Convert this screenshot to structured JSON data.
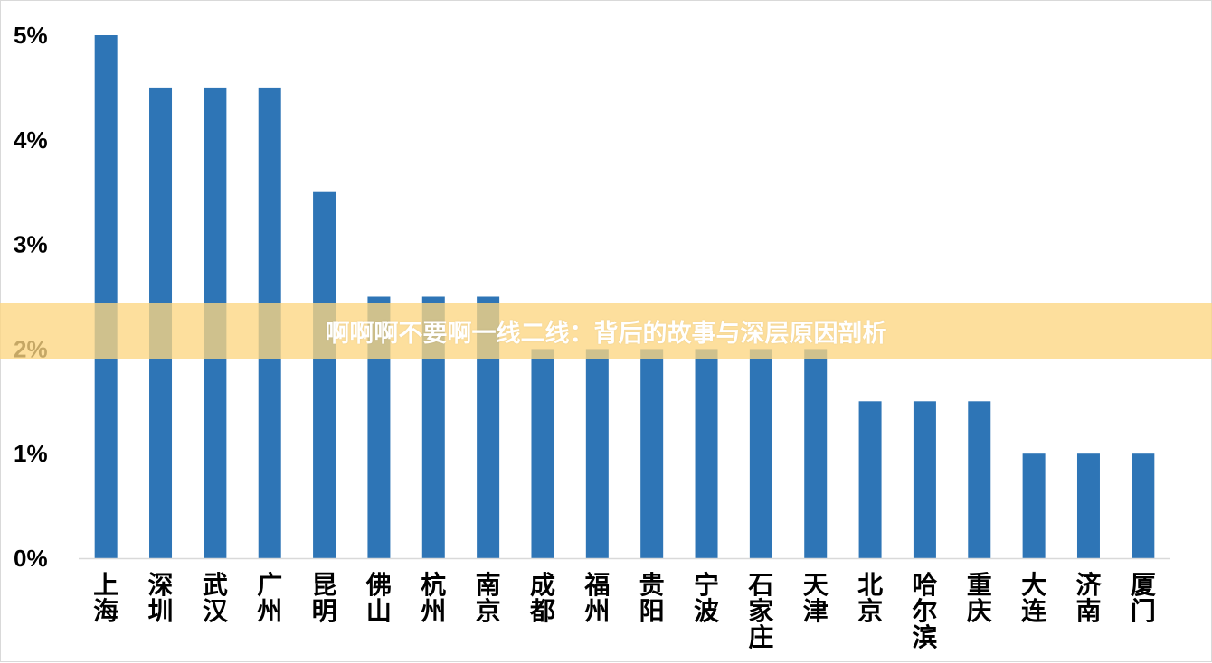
{
  "colors": {
    "bar": "#2e75b6",
    "axis": "#d9d9d9",
    "banner": "#fcd682",
    "banner_text": "#ffffff"
  },
  "banner": {
    "text": "啊啊啊不要啊一线二线：背后的故事与深层原因剖析"
  },
  "chart_data": {
    "type": "bar",
    "categories": [
      "上海",
      "深圳",
      "武汉",
      "广州",
      "昆明",
      "佛山",
      "杭州",
      "南京",
      "成都",
      "福州",
      "贵阳",
      "宁波",
      "石家庄",
      "天津",
      "北京",
      "哈尔滨",
      "重庆",
      "大连",
      "济南",
      "厦门"
    ],
    "values": [
      5.0,
      4.5,
      4.5,
      4.5,
      3.5,
      2.5,
      2.5,
      2.5,
      2.0,
      2.0,
      2.0,
      2.0,
      2.0,
      2.0,
      1.5,
      1.5,
      1.5,
      1.0,
      1.0,
      1.0
    ],
    "y_ticks": [
      "0%",
      "1%",
      "2%",
      "3%",
      "4%",
      "5%"
    ],
    "ylim": [
      0,
      5
    ],
    "grid": false,
    "legend": "none"
  }
}
